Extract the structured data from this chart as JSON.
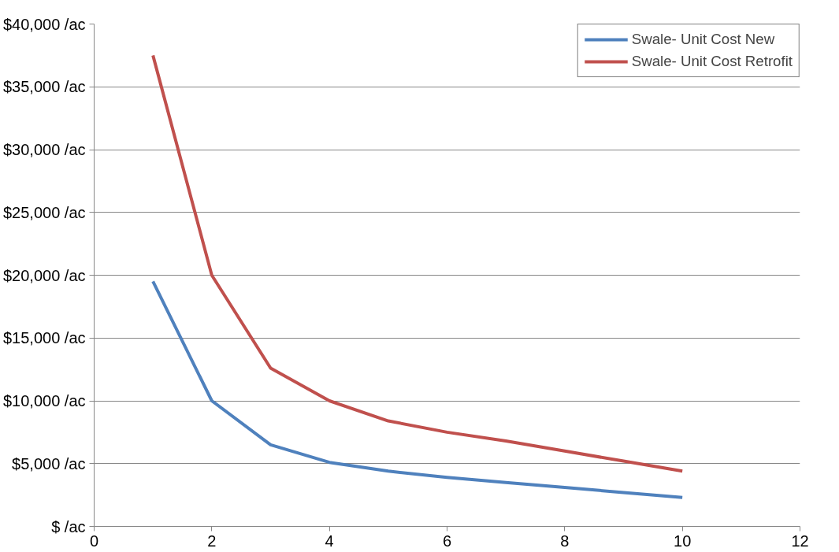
{
  "chart_data": {
    "type": "line",
    "x": [
      1,
      2,
      3,
      4,
      5,
      6,
      7,
      8,
      9,
      10
    ],
    "series": [
      {
        "name": "Swale- Unit Cost New",
        "color": "#4f81bd",
        "values": [
          19500,
          10000,
          6500,
          5100,
          4400,
          3900,
          3500,
          3100,
          2700,
          2300
        ]
      },
      {
        "name": "Swale- Unit Cost Retrofit",
        "color": "#c0504d",
        "values": [
          37500,
          20000,
          12600,
          10000,
          8400,
          7500,
          6800,
          6000,
          5200,
          4400
        ]
      }
    ],
    "xlim": [
      0,
      12
    ],
    "xticks": [
      0,
      2,
      4,
      6,
      8,
      10,
      12
    ],
    "ylim": [
      0,
      40000
    ],
    "yticks": [
      {
        "value": 0,
        "label": "$ /ac"
      },
      {
        "value": 5000,
        "label": "$5,000 /ac"
      },
      {
        "value": 10000,
        "label": "$10,000 /ac"
      },
      {
        "value": 15000,
        "label": "$15,000 /ac"
      },
      {
        "value": 20000,
        "label": "$20,000 /ac"
      },
      {
        "value": 25000,
        "label": "$25,000 /ac"
      },
      {
        "value": 30000,
        "label": "$30,000 /ac"
      },
      {
        "value": 35000,
        "label": "$35,000 /ac"
      },
      {
        "value": 40000,
        "label": "$40,000 /ac"
      }
    ],
    "grid": "y",
    "legend": "top right",
    "line_style": "solid",
    "marker": "none"
  }
}
